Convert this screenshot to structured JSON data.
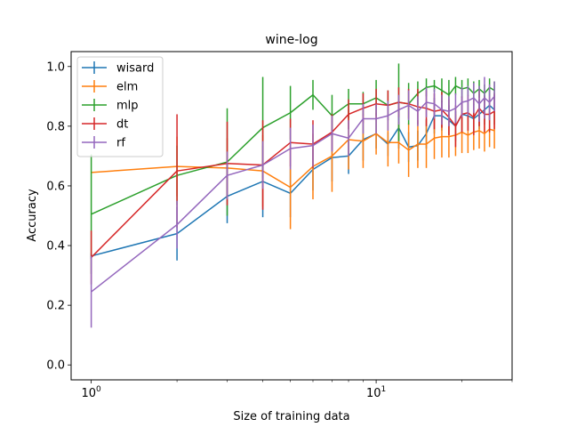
{
  "chart_data": {
    "type": "line",
    "title": "wine-log",
    "xlabel": "Size of training data",
    "ylabel": "Accuracy",
    "xscale": "log",
    "xlim": [
      0.85,
      30
    ],
    "ylim": [
      -0.05,
      1.05
    ],
    "x_major_ticks": [
      {
        "value": 1,
        "base": "10",
        "exp": "0"
      },
      {
        "value": 10,
        "base": "10",
        "exp": "1"
      }
    ],
    "x_minor_ticks": [
      2,
      3,
      4,
      5,
      6,
      7,
      8,
      9,
      20,
      30
    ],
    "y_ticks": [
      "0.0",
      "0.2",
      "0.4",
      "0.6",
      "0.8",
      "1.0"
    ],
    "legend_position": "top-left",
    "grid": false,
    "x": [
      1,
      2,
      3,
      4,
      5,
      6,
      7,
      8,
      9,
      10,
      11,
      12,
      13,
      14,
      15,
      16,
      17,
      18,
      19,
      20,
      21,
      22,
      23,
      24,
      25,
      26
    ],
    "series": [
      {
        "name": "wisard",
        "color": "#1f77b4",
        "values": [
          0.365,
          0.44,
          0.565,
          0.615,
          0.575,
          0.655,
          0.695,
          0.7,
          0.755,
          0.775,
          0.74,
          0.795,
          0.73,
          0.735,
          0.775,
          0.835,
          0.835,
          0.82,
          0.8,
          0.84,
          0.835,
          0.825,
          0.84,
          0.855,
          0.87,
          0.855
        ],
        "err": [
          0.01,
          0.09,
          0.09,
          0.12,
          0.08,
          0.07,
          0.08,
          0.06,
          0.07,
          0.05,
          0.04,
          0.07,
          0.05,
          0.05,
          0.05,
          0.06,
          0.05,
          0.05,
          0.05,
          0.06,
          0.05,
          0.05,
          0.05,
          0.05,
          0.05,
          0.05
        ]
      },
      {
        "name": "elm",
        "color": "#ff7f0e",
        "values": [
          0.645,
          0.665,
          0.66,
          0.65,
          0.595,
          0.665,
          0.7,
          0.755,
          0.75,
          0.775,
          0.745,
          0.745,
          0.72,
          0.74,
          0.74,
          0.76,
          0.765,
          0.765,
          0.77,
          0.78,
          0.77,
          0.78,
          0.785,
          0.775,
          0.79,
          0.785
        ],
        "err": [
          0.0,
          0.1,
          0.1,
          0.12,
          0.14,
          0.11,
          0.12,
          0.1,
          0.09,
          0.07,
          0.08,
          0.07,
          0.09,
          0.08,
          0.08,
          0.07,
          0.07,
          0.07,
          0.07,
          0.07,
          0.06,
          0.06,
          0.06,
          0.06,
          0.06,
          0.06
        ]
      },
      {
        "name": "mlp",
        "color": "#2ca02c",
        "values": [
          0.505,
          0.635,
          0.68,
          0.795,
          0.845,
          0.905,
          0.835,
          0.875,
          0.875,
          0.895,
          0.87,
          0.88,
          0.875,
          0.91,
          0.93,
          0.935,
          0.92,
          0.905,
          0.935,
          0.925,
          0.93,
          0.91,
          0.925,
          0.91,
          0.93,
          0.92
        ],
        "err": [
          0.2,
          0.1,
          0.18,
          0.17,
          0.09,
          0.05,
          0.07,
          0.05,
          0.04,
          0.06,
          0.05,
          0.13,
          0.07,
          0.04,
          0.03,
          0.02,
          0.04,
          0.05,
          0.03,
          0.03,
          0.03,
          0.04,
          0.03,
          0.03,
          0.03,
          0.03
        ]
      },
      {
        "name": "dt",
        "color": "#d62728",
        "values": [
          0.36,
          0.65,
          0.675,
          0.67,
          0.745,
          0.74,
          0.78,
          0.84,
          0.86,
          0.875,
          0.87,
          0.88,
          0.875,
          0.865,
          0.86,
          0.85,
          0.855,
          0.83,
          0.8,
          0.84,
          0.845,
          0.83,
          0.86,
          0.84,
          0.84,
          0.85
        ],
        "err": [
          0.09,
          0.19,
          0.14,
          0.15,
          0.08,
          0.08,
          0.06,
          0.05,
          0.05,
          0.05,
          0.05,
          0.05,
          0.05,
          0.06,
          0.06,
          0.06,
          0.06,
          0.06,
          0.07,
          0.06,
          0.06,
          0.06,
          0.06,
          0.06,
          0.06,
          0.06
        ]
      },
      {
        "name": "rf",
        "color": "#9467bd",
        "values": [
          0.245,
          0.47,
          0.635,
          0.67,
          0.725,
          0.735,
          0.775,
          0.76,
          0.825,
          0.825,
          0.835,
          0.855,
          0.87,
          0.85,
          0.88,
          0.875,
          0.855,
          0.85,
          0.86,
          0.88,
          0.885,
          0.895,
          0.875,
          0.895,
          0.88,
          0.9
        ],
        "err": [
          0.12,
          0.08,
          0.08,
          0.08,
          0.07,
          0.07,
          0.06,
          0.06,
          0.05,
          0.05,
          0.05,
          0.05,
          0.05,
          0.05,
          0.05,
          0.05,
          0.05,
          0.05,
          0.05,
          0.05,
          0.05,
          0.05,
          0.06,
          0.07,
          0.06,
          0.05
        ]
      }
    ]
  }
}
